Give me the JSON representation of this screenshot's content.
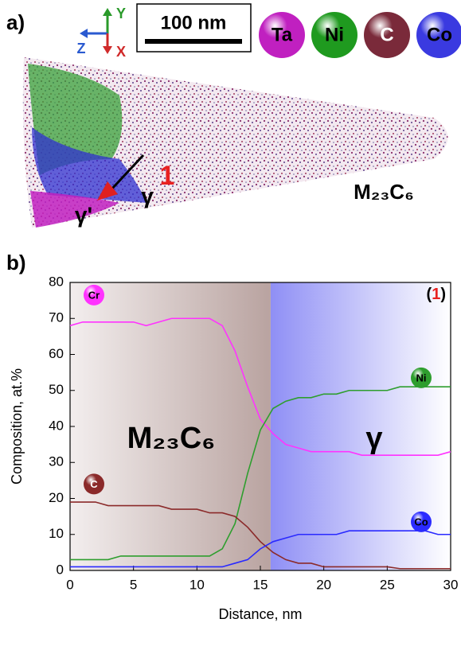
{
  "panel_a": {
    "label": "a)",
    "axes": {
      "y": "Y",
      "z": "Z",
      "x": "X"
    },
    "scale_bar": "100 nm",
    "elements": [
      {
        "name": "Ta",
        "color": "#c020c0"
      },
      {
        "name": "Ni",
        "color": "#1f9a1f"
      },
      {
        "name": "C",
        "color": "#7a2a3a"
      },
      {
        "name": "Co",
        "color": "#3a3ae0"
      }
    ],
    "phase_carbide": "M₂₃C₆",
    "phase_gamma": "γ",
    "phase_gamma_prime": "γ'",
    "feature": "1"
  },
  "chart_data": {
    "type": "line",
    "panel_label": "b)",
    "xlabel": "Distance, nm",
    "ylabel": "Composition, at.%",
    "annotation": "(1)",
    "phase_labels": [
      "M₂₃C₆",
      "γ"
    ],
    "xlim": [
      0,
      30
    ],
    "ylim": [
      0,
      80
    ],
    "xticks": [
      0,
      5,
      10,
      15,
      20,
      25,
      30
    ],
    "yticks": [
      0,
      10,
      20,
      30,
      40,
      50,
      60,
      70,
      80
    ],
    "x": [
      0,
      1,
      2,
      3,
      4,
      5,
      6,
      7,
      8,
      9,
      10,
      11,
      12,
      13,
      14,
      15,
      16,
      17,
      18,
      19,
      20,
      21,
      22,
      23,
      24,
      25,
      26,
      27,
      28,
      29,
      30
    ],
    "series": [
      {
        "name": "Cr",
        "color": "#ff33ff",
        "values": [
          68,
          69,
          69,
          69,
          69,
          69,
          68,
          69,
          70,
          70,
          70,
          70,
          68,
          61,
          51,
          42,
          38,
          35,
          34,
          33,
          33,
          33,
          33,
          32,
          32,
          32,
          32,
          32,
          32,
          32,
          33
        ]
      },
      {
        "name": "Ni",
        "color": "#2e9e2e",
        "values": [
          3,
          3,
          3,
          3,
          4,
          4,
          4,
          4,
          4,
          4,
          4,
          4,
          6,
          13,
          27,
          39,
          45,
          47,
          48,
          48,
          49,
          49,
          50,
          50,
          50,
          50,
          51,
          51,
          51,
          51,
          51
        ]
      },
      {
        "name": "C",
        "color": "#8b2a2a",
        "values": [
          19,
          19,
          19,
          18,
          18,
          18,
          18,
          18,
          17,
          17,
          17,
          16,
          16,
          15,
          12,
          8,
          5,
          3,
          2,
          2,
          1,
          1,
          1,
          1,
          1,
          1,
          0.5,
          0.5,
          0.5,
          0.5,
          0.5
        ]
      },
      {
        "name": "Co",
        "color": "#2a2aff",
        "values": [
          1,
          1,
          1,
          1,
          1,
          1,
          1,
          1,
          1,
          1,
          1,
          1,
          1,
          2,
          3,
          6,
          8,
          9,
          10,
          10,
          10,
          10,
          11,
          11,
          11,
          11,
          11,
          11,
          11,
          10,
          10
        ]
      }
    ]
  }
}
